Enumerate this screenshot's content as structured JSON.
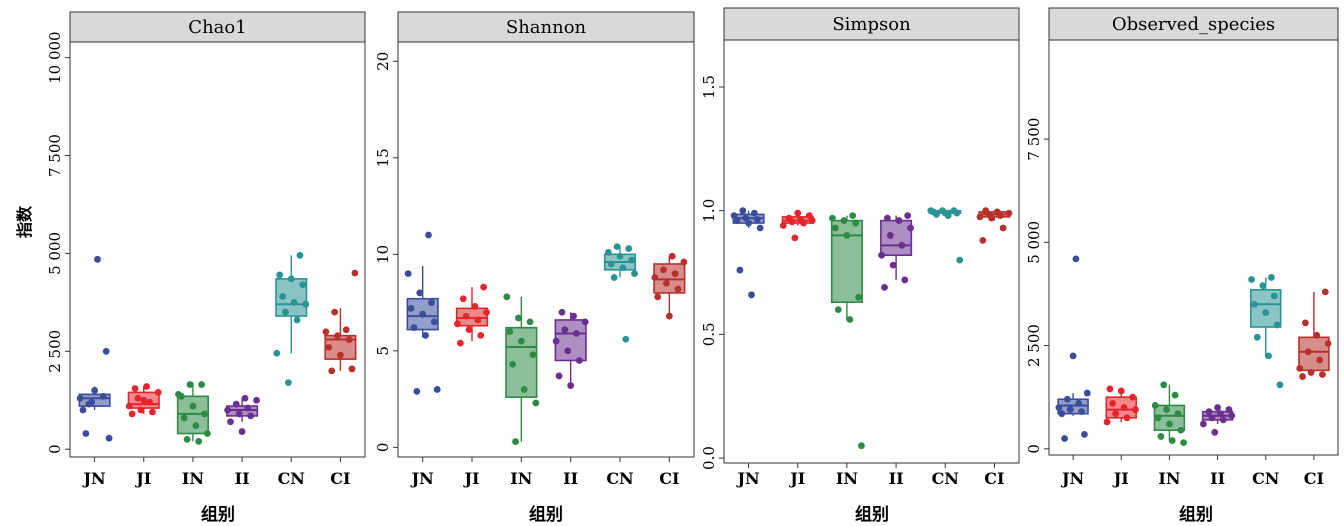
{
  "ylabel": "指数",
  "xlabel": "组别",
  "colors": {
    "JN": "#3a4d9a",
    "JI": "#e3262c",
    "IN": "#2e8b46",
    "II": "#6a2f8f",
    "CN": "#2a9494",
    "CI": "#b8302c"
  },
  "chart_data": [
    {
      "type": "box",
      "title": "Chao1",
      "xlabel": "组别",
      "categories": [
        "JN",
        "JI",
        "IN",
        "II",
        "CN",
        "CI"
      ],
      "ylim": [
        -200,
        10400
      ],
      "yticks": [
        0,
        2500,
        5000,
        7500,
        10000
      ],
      "ytick_labels": [
        "0",
        "2 500",
        "5 000",
        "7 500",
        "10 000"
      ],
      "series": [
        {
          "group": "JN",
          "min": 1000,
          "q1": 1100,
          "median": 1300,
          "q3": 1400,
          "max": 1600,
          "points": [
            1300,
            1200,
            1350,
            1000,
            1500,
            2500,
            400,
            4850,
            280,
            1150
          ]
        },
        {
          "group": "JI",
          "min": 900,
          "q1": 1050,
          "median": 1150,
          "q3": 1450,
          "max": 1600,
          "points": [
            1550,
            1600,
            1450,
            1300,
            1200,
            1100,
            1000,
            950,
            900,
            1250
          ]
        },
        {
          "group": "IN",
          "min": 200,
          "q1": 400,
          "median": 900,
          "q3": 1350,
          "max": 1700,
          "points": [
            1650,
            1650,
            1350,
            1100,
            900,
            800,
            600,
            400,
            250,
            200,
            1400
          ]
        },
        {
          "group": "II",
          "min": 700,
          "q1": 850,
          "median": 1000,
          "q3": 1100,
          "max": 1300,
          "points": [
            1300,
            1250,
            1150,
            1050,
            1000,
            900,
            850,
            700,
            450
          ]
        },
        {
          "group": "CN",
          "min": 2450,
          "q1": 3400,
          "median": 3700,
          "q3": 4350,
          "max": 4950,
          "points": [
            4950,
            4450,
            4350,
            4200,
            3900,
            3750,
            3700,
            3500,
            3300,
            2450,
            1700
          ]
        },
        {
          "group": "CI",
          "min": 2000,
          "q1": 2300,
          "median": 2800,
          "q3": 2900,
          "max": 3600,
          "points": [
            4500,
            3500,
            3050,
            3000,
            2900,
            2800,
            2600,
            2400,
            2050,
            2000
          ]
        }
      ]
    },
    {
      "type": "box",
      "title": "Shannon",
      "xlabel": "组别",
      "categories": [
        "JN",
        "JI",
        "IN",
        "II",
        "CN",
        "CI"
      ],
      "ylim": [
        -0.5,
        21
      ],
      "yticks": [
        0,
        5,
        10,
        15,
        20
      ],
      "ytick_labels": [
        "0",
        "5",
        "10",
        "15",
        "20"
      ],
      "series": [
        {
          "group": "JN",
          "min": 5.7,
          "q1": 6.1,
          "median": 6.8,
          "q3": 7.7,
          "max": 9.4,
          "points": [
            11.0,
            9.0,
            8.0,
            7.5,
            7.2,
            6.9,
            6.5,
            6.2,
            5.8,
            3.0,
            2.9
          ]
        },
        {
          "group": "JI",
          "min": 5.5,
          "q1": 6.3,
          "median": 6.7,
          "q3": 7.2,
          "max": 8.3,
          "points": [
            8.3,
            7.7,
            7.3,
            7.0,
            6.8,
            6.6,
            6.4,
            6.1,
            5.8,
            5.4
          ]
        },
        {
          "group": "IN",
          "min": 0.3,
          "q1": 2.6,
          "median": 5.2,
          "q3": 6.2,
          "max": 7.8,
          "points": [
            7.8,
            6.7,
            6.5,
            6.0,
            5.5,
            4.8,
            4.3,
            3.0,
            2.3,
            0.3
          ]
        },
        {
          "group": "II",
          "min": 3.3,
          "q1": 4.5,
          "median": 5.9,
          "q3": 6.6,
          "max": 7.0,
          "points": [
            7.0,
            6.8,
            6.5,
            6.1,
            5.9,
            5.5,
            5.0,
            4.5,
            3.7,
            3.2
          ]
        },
        {
          "group": "CN",
          "min": 8.8,
          "q1": 9.2,
          "median": 9.6,
          "q3": 10.0,
          "max": 10.4,
          "points": [
            10.4,
            10.3,
            10.1,
            9.9,
            9.7,
            9.5,
            9.3,
            9.0,
            8.8,
            5.6
          ]
        },
        {
          "group": "CI",
          "min": 6.8,
          "q1": 8.0,
          "median": 8.7,
          "q3": 9.5,
          "max": 9.9,
          "points": [
            9.9,
            9.6,
            9.2,
            9.0,
            8.8,
            8.5,
            8.2,
            7.8,
            6.8
          ]
        }
      ]
    },
    {
      "type": "box",
      "title": "Simpson",
      "xlabel": "组别",
      "categories": [
        "JN",
        "JI",
        "IN",
        "II",
        "CN",
        "CI"
      ],
      "ylim": [
        -0.02,
        1.69
      ],
      "yticks": [
        0.0,
        0.5,
        1.0,
        1.5
      ],
      "ytick_labels": [
        "0.0",
        "0.5",
        "1.0",
        "1.5"
      ],
      "series": [
        {
          "group": "JN",
          "min": 0.93,
          "q1": 0.95,
          "median": 0.97,
          "q3": 0.985,
          "max": 1.0,
          "points": [
            1.0,
            0.99,
            0.98,
            0.97,
            0.965,
            0.96,
            0.95,
            0.93,
            0.76,
            0.66
          ]
        },
        {
          "group": "JI",
          "min": 0.94,
          "q1": 0.95,
          "median": 0.96,
          "q3": 0.975,
          "max": 0.99,
          "points": [
            0.99,
            0.98,
            0.97,
            0.965,
            0.96,
            0.955,
            0.95,
            0.94,
            0.89
          ]
        },
        {
          "group": "IN",
          "min": 0.56,
          "q1": 0.63,
          "median": 0.9,
          "q3": 0.96,
          "max": 0.98,
          "points": [
            0.98,
            0.97,
            0.96,
            0.95,
            0.93,
            0.9,
            0.65,
            0.6,
            0.56,
            0.05
          ]
        },
        {
          "group": "II",
          "min": 0.72,
          "q1": 0.82,
          "median": 0.86,
          "q3": 0.96,
          "max": 0.98,
          "points": [
            0.98,
            0.97,
            0.96,
            0.93,
            0.9,
            0.86,
            0.82,
            0.78,
            0.72,
            0.69
          ]
        },
        {
          "group": "CN",
          "min": 0.98,
          "q1": 0.99,
          "median": 0.995,
          "q3": 1.0,
          "max": 1.0,
          "points": [
            1.0,
            1.0,
            1.0,
            0.995,
            0.99,
            0.99,
            0.985,
            0.98,
            0.8
          ]
        },
        {
          "group": "CI",
          "min": 0.96,
          "q1": 0.975,
          "median": 0.985,
          "q3": 0.995,
          "max": 1.0,
          "points": [
            1.0,
            0.995,
            0.99,
            0.985,
            0.98,
            0.975,
            0.97,
            0.93,
            0.88
          ]
        }
      ]
    },
    {
      "type": "box",
      "title": "Observed_species",
      "xlabel": "组别",
      "categories": [
        "JN",
        "JI",
        "IN",
        "II",
        "CN",
        "CI"
      ],
      "ylim": [
        -150,
        9900
      ],
      "yticks": [
        0,
        2500,
        5000,
        7500
      ],
      "ytick_labels": [
        "0",
        "2 500",
        "5 000",
        "7 500"
      ],
      "series": [
        {
          "group": "JN",
          "min": 800,
          "q1": 850,
          "median": 1050,
          "q3": 1200,
          "max": 1350,
          "points": [
            1350,
            1200,
            1100,
            1000,
            950,
            900,
            850,
            2250,
            350,
            250,
            4600
          ]
        },
        {
          "group": "JI",
          "min": 650,
          "q1": 750,
          "median": 950,
          "q3": 1250,
          "max": 1450,
          "points": [
            1450,
            1400,
            1250,
            1100,
            1000,
            950,
            850,
            750,
            650
          ]
        },
        {
          "group": "IN",
          "min": 200,
          "q1": 450,
          "median": 800,
          "q3": 1050,
          "max": 1550,
          "points": [
            1550,
            1300,
            1050,
            950,
            850,
            750,
            600,
            450,
            300,
            200,
            150
          ]
        },
        {
          "group": "II",
          "min": 600,
          "q1": 700,
          "median": 800,
          "q3": 900,
          "max": 1000,
          "points": [
            1000,
            950,
            900,
            850,
            800,
            750,
            700,
            600,
            400
          ]
        },
        {
          "group": "CN",
          "min": 2200,
          "q1": 2950,
          "median": 3500,
          "q3": 3850,
          "max": 4150,
          "points": [
            4150,
            4100,
            3950,
            3700,
            3500,
            3300,
            3000,
            2700,
            2250,
            1550
          ]
        },
        {
          "group": "CI",
          "min": 1850,
          "q1": 1900,
          "median": 2350,
          "q3": 2700,
          "max": 3800,
          "points": [
            3800,
            3050,
            2750,
            2550,
            2350,
            2150,
            1950,
            1850,
            1800,
            1750
          ]
        }
      ]
    }
  ]
}
